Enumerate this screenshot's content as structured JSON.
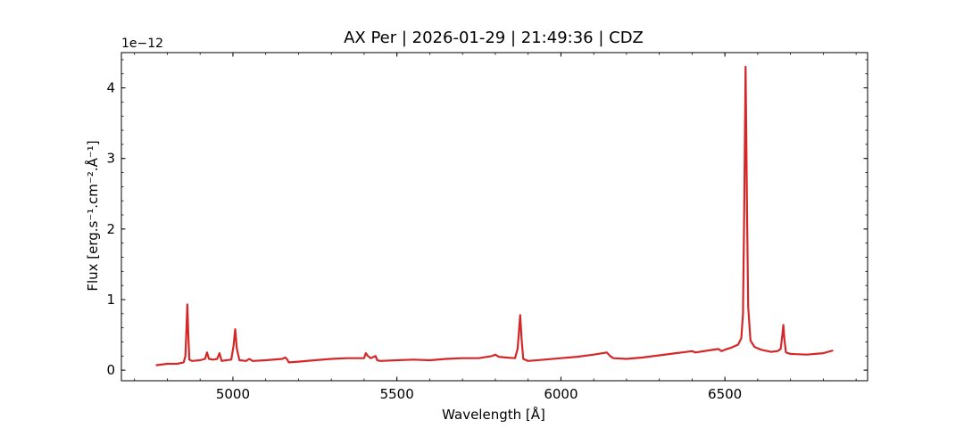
{
  "chart_data": {
    "type": "line",
    "title": "AX Per | 2026-01-29 | 21:49:36 | CDZ",
    "xlabel": "Wavelength [Å]",
    "ylabel": "Flux [erg.s⁻¹.cm⁻².Å⁻¹]",
    "y_offset_label": "1e−12",
    "xlim": [
      4660,
      6935
    ],
    "ylim": [
      -0.15,
      4.5
    ],
    "y_scale_factor": 1e-12,
    "x_major_ticks": [
      5000,
      5500,
      6000,
      6500
    ],
    "x_minor_step": 100,
    "y_major_ticks": [
      0,
      1,
      2,
      3,
      4
    ],
    "y_minor_step": 0.2,
    "grid": false,
    "line_color": "#d62728",
    "series": [
      {
        "x": [
          4765,
          4800,
          4830,
          4850,
          4855,
          4858,
          4861,
          4864,
          4867,
          4875,
          4900,
          4915,
          4921,
          4927,
          4940,
          4952,
          4959,
          4966,
          4980,
          4995,
          5002,
          5007,
          5012,
          5020,
          5040,
          5050,
          5060,
          5100,
          5150,
          5160,
          5166,
          5170,
          5200,
          5250,
          5300,
          5350,
          5400,
          5405,
          5412,
          5420,
          5435,
          5440,
          5450,
          5500,
          5550,
          5600,
          5650,
          5700,
          5750,
          5790,
          5800,
          5810,
          5830,
          5860,
          5868,
          5872,
          5876,
          5880,
          5885,
          5900,
          5950,
          6000,
          6050,
          6100,
          6140,
          6150,
          6160,
          6200,
          6250,
          6300,
          6350,
          6400,
          6410,
          6450,
          6480,
          6490,
          6500,
          6520,
          6540,
          6550,
          6555,
          6559,
          6563,
          6567,
          6571,
          6578,
          6590,
          6610,
          6640,
          6660,
          6670,
          6675,
          6678,
          6681,
          6686,
          6700,
          6750,
          6775,
          6800,
          6830
        ],
        "y": [
          0.07,
          0.09,
          0.09,
          0.11,
          0.2,
          0.55,
          0.93,
          0.5,
          0.15,
          0.13,
          0.14,
          0.16,
          0.25,
          0.16,
          0.15,
          0.16,
          0.24,
          0.13,
          0.14,
          0.15,
          0.35,
          0.58,
          0.3,
          0.14,
          0.13,
          0.16,
          0.13,
          0.14,
          0.16,
          0.18,
          0.15,
          0.11,
          0.12,
          0.14,
          0.16,
          0.17,
          0.17,
          0.24,
          0.2,
          0.17,
          0.2,
          0.14,
          0.13,
          0.14,
          0.15,
          0.14,
          0.16,
          0.17,
          0.17,
          0.2,
          0.22,
          0.19,
          0.18,
          0.17,
          0.3,
          0.55,
          0.78,
          0.45,
          0.16,
          0.13,
          0.15,
          0.17,
          0.19,
          0.22,
          0.25,
          0.2,
          0.17,
          0.16,
          0.18,
          0.21,
          0.24,
          0.27,
          0.25,
          0.28,
          0.3,
          0.27,
          0.29,
          0.32,
          0.36,
          0.45,
          0.8,
          2.3,
          4.3,
          2.4,
          0.9,
          0.42,
          0.33,
          0.29,
          0.26,
          0.27,
          0.3,
          0.5,
          0.64,
          0.45,
          0.25,
          0.23,
          0.22,
          0.23,
          0.24,
          0.28
        ]
      }
    ]
  }
}
